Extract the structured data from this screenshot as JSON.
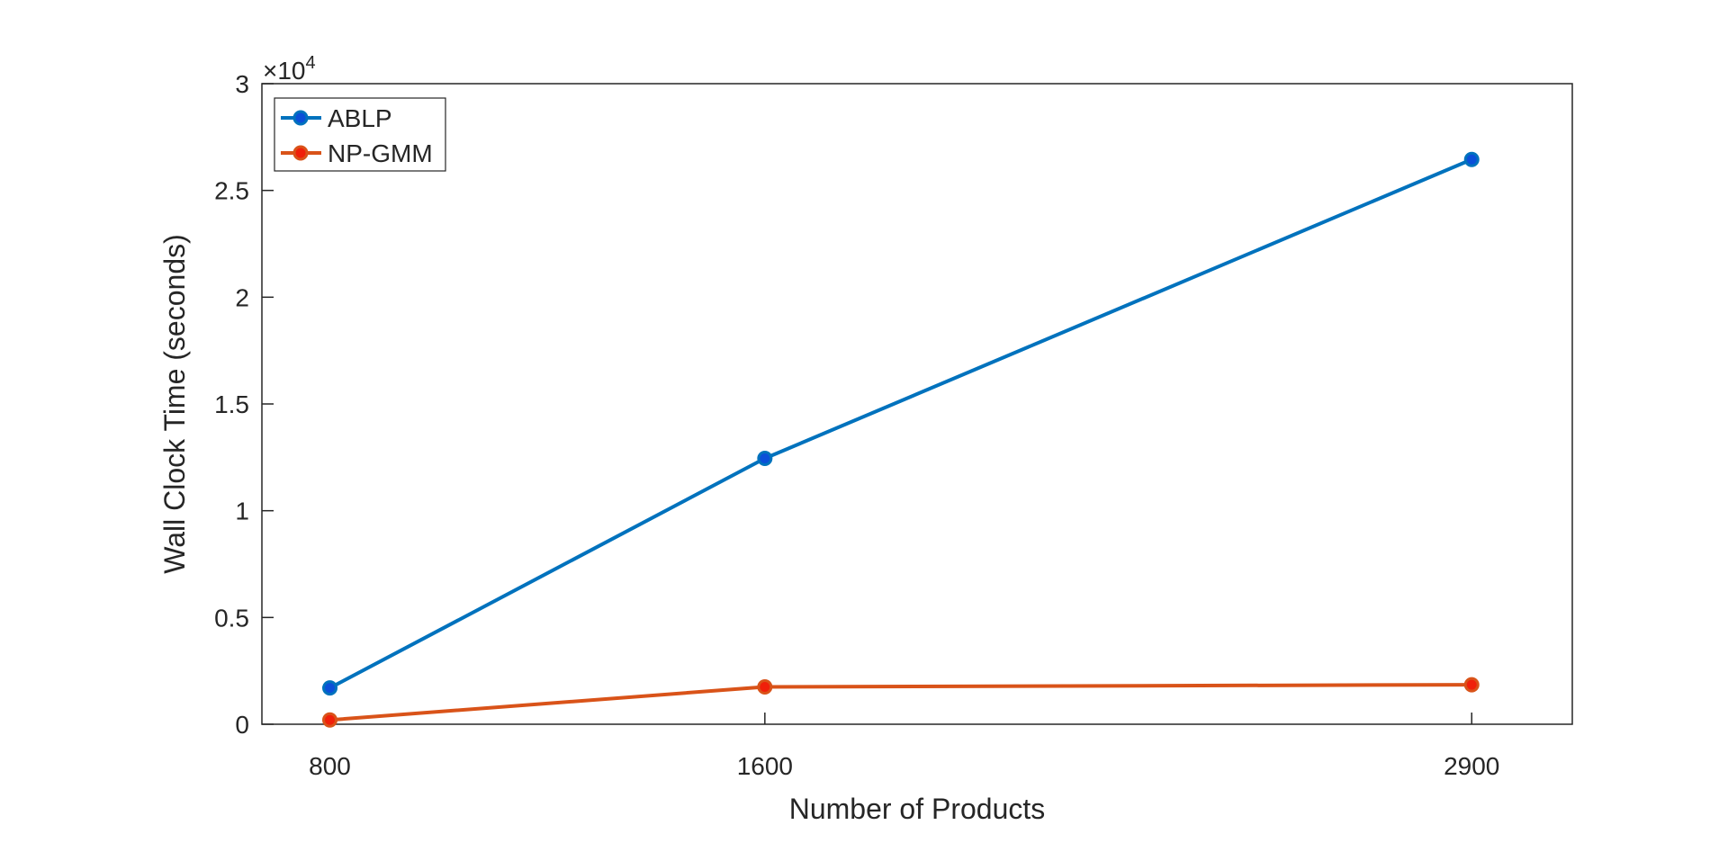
{
  "chart_data": {
    "type": "line",
    "x": [
      800,
      1600,
      2900
    ],
    "x_tick_labels": [
      "800",
      "1600",
      "2900"
    ],
    "xlabel": "Number of Products",
    "ylabel": "Wall Clock Time (seconds)",
    "y_exponent_label": "×10",
    "y_exponent_power": "4",
    "y_tick_labels": [
      "0",
      "0.5",
      "1",
      "1.5",
      "2",
      "2.5",
      "3"
    ],
    "ylim": [
      0,
      30000
    ],
    "grid": false,
    "legend_position": "top-left",
    "series": [
      {
        "name": "ABLP",
        "color": "#0072BD",
        "marker_fill": "#0b4fd8",
        "values": [
          1700,
          12450,
          26450
        ]
      },
      {
        "name": "NP-GMM",
        "color": "#D95319",
        "marker_fill": "#f0200a",
        "values": [
          200,
          1750,
          1850
        ]
      }
    ]
  }
}
